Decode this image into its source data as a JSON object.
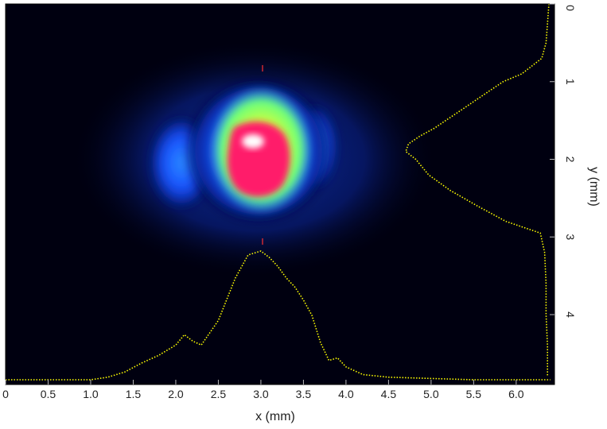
{
  "figure": {
    "x_axis_label": "x (mm)",
    "y_axis_label": "y (mm)",
    "x_ticks": [
      "0",
      "0.5",
      "1.0",
      "1.5",
      "2.0",
      "2.5",
      "3.0",
      "3.5",
      "4.0",
      "4.5",
      "5.0",
      "5.5",
      "6.0"
    ],
    "y_ticks": [
      "0",
      "1",
      "2",
      "3",
      "4"
    ],
    "background_color": "#000010",
    "profile_color": "#ffff00",
    "marker_color": "#ff3030",
    "colormap": [
      "#000010",
      "#0a1f8a",
      "#1e5aff",
      "#3fd6ff",
      "#9aff4a",
      "#ffff40",
      "#ff8030",
      "#ff1070",
      "#ffffff"
    ]
  },
  "chart_data": {
    "type": "heatmap",
    "xlabel": "x (mm)",
    "ylabel": "y (mm)",
    "xlim": [
      0,
      6.45
    ],
    "ylim": [
      0,
      4.9
    ],
    "beam_center": {
      "x": 3.0,
      "y": 1.75
    },
    "horizontal_profile": {
      "x": [
        0,
        0.5,
        1.0,
        1.2,
        1.4,
        1.6,
        1.8,
        2.0,
        2.1,
        2.2,
        2.3,
        2.5,
        2.7,
        2.85,
        3.0,
        3.1,
        3.2,
        3.3,
        3.4,
        3.5,
        3.6,
        3.7,
        3.8,
        3.9,
        4.0,
        4.2,
        4.5,
        5.0,
        5.5,
        6.0,
        6.4
      ],
      "y": [
        0.0,
        0.0,
        0.0,
        0.02,
        0.06,
        0.13,
        0.19,
        0.27,
        0.35,
        0.3,
        0.27,
        0.46,
        0.79,
        0.97,
        1.0,
        0.95,
        0.88,
        0.79,
        0.72,
        0.62,
        0.5,
        0.29,
        0.15,
        0.17,
        0.1,
        0.04,
        0.02,
        0.01,
        0.0,
        0.0,
        0.0
      ]
    },
    "vertical_profile": {
      "y": [
        0.0,
        0.5,
        0.7,
        0.9,
        1.0,
        1.2,
        1.35,
        1.5,
        1.6,
        1.7,
        1.8,
        1.9,
        2.0,
        2.2,
        2.4,
        2.6,
        2.8,
        2.95,
        3.2,
        3.6,
        4.0,
        4.4,
        4.8
      ],
      "intensity": [
        0.0,
        0.02,
        0.05,
        0.19,
        0.32,
        0.48,
        0.6,
        0.72,
        0.8,
        0.9,
        0.98,
        1.0,
        0.93,
        0.84,
        0.69,
        0.5,
        0.3,
        0.06,
        0.03,
        0.02,
        0.02,
        0.01,
        0.01
      ]
    }
  }
}
